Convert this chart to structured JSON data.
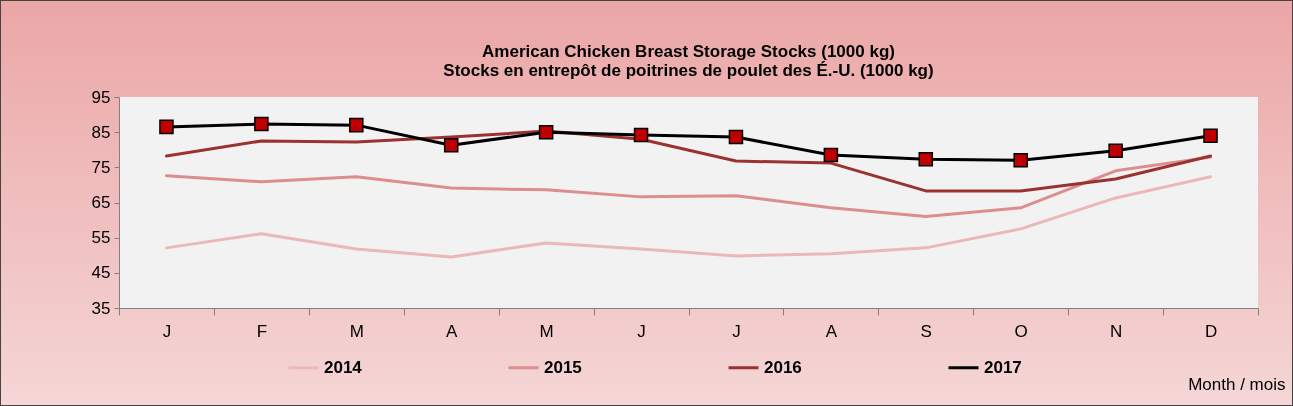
{
  "chart_data": {
    "type": "line",
    "title": "American Chicken Breast Storage Stocks (1000 kg)",
    "subtitle": "Stocks en entrepôt de poitrines de poulet des É.-U. (1000 kg)",
    "xlabel": "Month / mois",
    "categories": [
      "J",
      "F",
      "M",
      "A",
      "M",
      "J",
      "J",
      "A",
      "S",
      "O",
      "N",
      "D"
    ],
    "ylim": [
      35,
      95
    ],
    "yticks": [
      35,
      45,
      55,
      65,
      75,
      85,
      95
    ],
    "grid": false,
    "legend": "bottom",
    "series": [
      {
        "name": "2014",
        "color": "#ebb8b8",
        "values": [
          52.1,
          56.1,
          51.8,
          49.5,
          53.5,
          51.8,
          49.8,
          50.4,
          52.1,
          57.5,
          66.3,
          72.3
        ]
      },
      {
        "name": "2015",
        "color": "#dc8e8e",
        "values": [
          72.6,
          70.9,
          72.3,
          69.1,
          68.6,
          66.6,
          66.9,
          63.5,
          61,
          63.5,
          74,
          77.9
        ]
      },
      {
        "name": "2016",
        "color": "#9b3232",
        "values": [
          78.2,
          82.5,
          82.2,
          83.6,
          85.3,
          83,
          76.8,
          76.2,
          68.3,
          68.3,
          71.7,
          78.2
        ]
      },
      {
        "name": "2017",
        "color": "#000000",
        "marker": "square",
        "colors": [
          "#c00000",
          "#c00000",
          "#c00000",
          "#c00000",
          "#c00000",
          "#c00000",
          "#c00000",
          "#c00000",
          "#c00000",
          "#c00000",
          "#c00000",
          "#c00000"
        ],
        "values": [
          86.5,
          87.3,
          87,
          81.3,
          85,
          84.2,
          83.6,
          78.5,
          77.3,
          77,
          79.7,
          84
        ]
      }
    ]
  }
}
